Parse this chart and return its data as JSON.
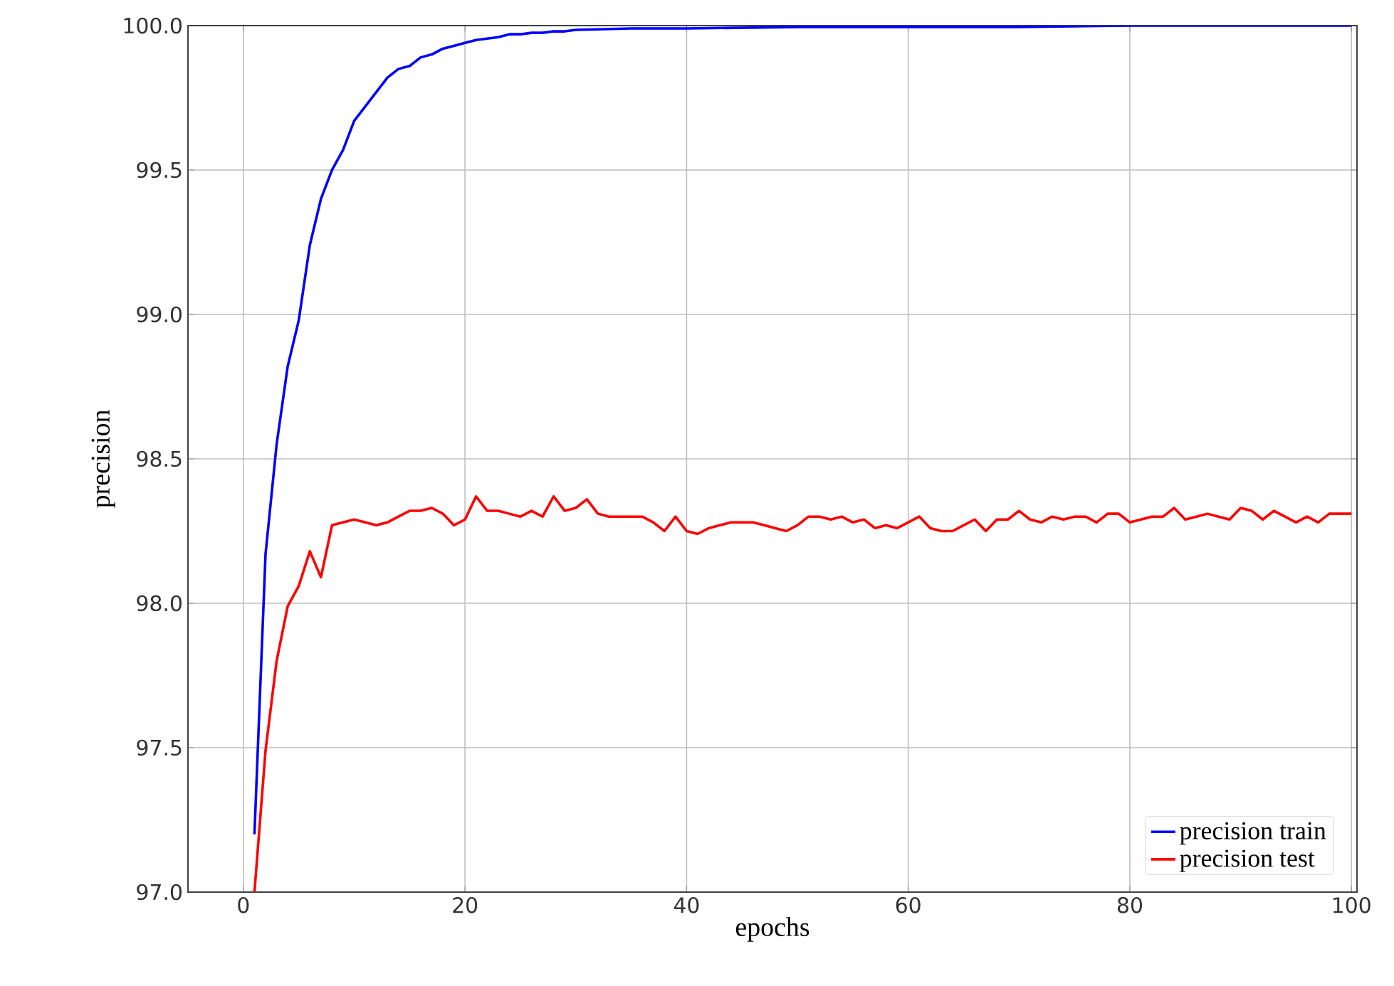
{
  "chart_data": {
    "type": "line",
    "xlabel": "epochs",
    "ylabel": "precision",
    "xlim": [
      -5,
      100.5
    ],
    "ylim": [
      97.0,
      100.0
    ],
    "xticks": [
      0,
      20,
      40,
      60,
      80,
      100
    ],
    "yticks": [
      {
        "value": 97.0,
        "label": "97.0"
      },
      {
        "value": 97.5,
        "label": "97.5"
      },
      {
        "value": 98.0,
        "label": "98.0"
      },
      {
        "value": 98.5,
        "label": "98.5"
      },
      {
        "value": 99.0,
        "label": "99.0"
      },
      {
        "value": 99.5,
        "label": "99.5"
      },
      {
        "value": 100.0,
        "label": "100.0"
      }
    ],
    "grid": true,
    "legend": "bottom right",
    "marker": "none",
    "line_style": "solid",
    "series": [
      {
        "name": "precision train",
        "color": "#0000ff",
        "x": [
          1,
          2,
          3,
          4,
          5,
          6,
          7,
          8,
          9,
          10,
          11,
          12,
          13,
          14,
          15,
          16,
          17,
          18,
          19,
          20,
          21,
          22,
          23,
          24,
          25,
          26,
          27,
          28,
          29,
          30,
          35,
          40,
          50,
          60,
          70,
          80,
          90,
          100
        ],
        "values": [
          97.2,
          98.17,
          98.55,
          98.82,
          98.98,
          99.24,
          99.4,
          99.5,
          99.57,
          99.67,
          99.72,
          99.77,
          99.82,
          99.85,
          99.86,
          99.89,
          99.9,
          99.92,
          99.93,
          99.94,
          99.95,
          99.955,
          99.96,
          99.97,
          99.97,
          99.975,
          99.975,
          99.98,
          99.98,
          99.985,
          99.99,
          99.99,
          99.995,
          99.995,
          99.995,
          100.0,
          100.0,
          100.0
        ]
      },
      {
        "name": "precision test",
        "color": "#ff0000",
        "x": [
          1,
          2,
          3,
          4,
          5,
          6,
          7,
          8,
          9,
          10,
          11,
          12,
          13,
          14,
          15,
          16,
          17,
          18,
          19,
          20,
          21,
          22,
          23,
          24,
          25,
          26,
          27,
          28,
          29,
          30,
          31,
          32,
          33,
          34,
          35,
          36,
          37,
          38,
          39,
          40,
          41,
          42,
          43,
          44,
          45,
          46,
          47,
          48,
          49,
          50,
          51,
          52,
          53,
          54,
          55,
          56,
          57,
          58,
          59,
          60,
          61,
          62,
          63,
          64,
          65,
          66,
          67,
          68,
          69,
          70,
          71,
          72,
          73,
          74,
          75,
          76,
          77,
          78,
          79,
          80,
          81,
          82,
          83,
          84,
          85,
          86,
          87,
          88,
          89,
          90,
          91,
          92,
          93,
          94,
          95,
          96,
          97,
          98,
          99,
          100
        ],
        "values": [
          97.0,
          97.49,
          97.8,
          97.99,
          98.06,
          98.18,
          98.09,
          98.27,
          98.28,
          98.29,
          98.28,
          98.27,
          98.28,
          98.3,
          98.32,
          98.32,
          98.33,
          98.31,
          98.27,
          98.29,
          98.37,
          98.32,
          98.32,
          98.31,
          98.3,
          98.32,
          98.3,
          98.37,
          98.32,
          98.33,
          98.36,
          98.31,
          98.3,
          98.3,
          98.3,
          98.3,
          98.28,
          98.25,
          98.3,
          98.25,
          98.24,
          98.26,
          98.27,
          98.28,
          98.28,
          98.28,
          98.27,
          98.26,
          98.25,
          98.27,
          98.3,
          98.3,
          98.29,
          98.3,
          98.28,
          98.29,
          98.26,
          98.27,
          98.26,
          98.28,
          98.3,
          98.26,
          98.25,
          98.25,
          98.27,
          98.29,
          98.25,
          98.29,
          98.29,
          98.32,
          98.29,
          98.28,
          98.3,
          98.29,
          98.3,
          98.3,
          98.28,
          98.31,
          98.31,
          98.28,
          98.29,
          98.3,
          98.3,
          98.33,
          98.29,
          98.3,
          98.31,
          98.3,
          98.29,
          98.33,
          98.32,
          98.29,
          98.32,
          98.3,
          98.28,
          98.3,
          98.28,
          98.31,
          98.31,
          98.31
        ]
      }
    ]
  }
}
